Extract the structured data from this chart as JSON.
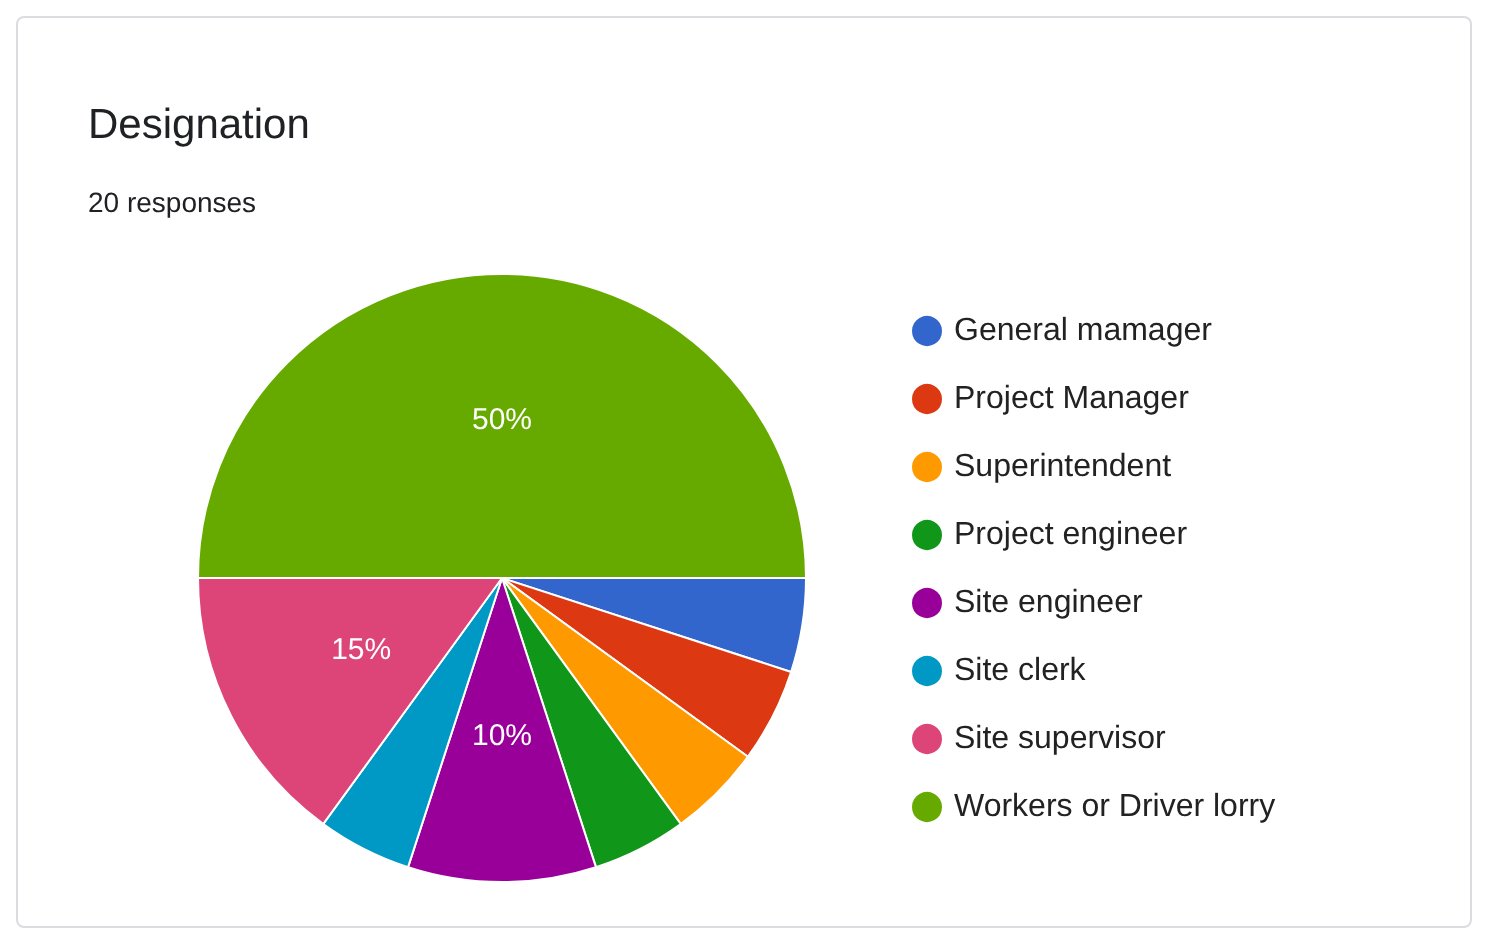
{
  "chart_data": {
    "type": "pie",
    "title": "Designation",
    "subtitle": "20 responses",
    "categories": [
      "General mamager",
      "Project Manager",
      "Superintendent",
      "Project engineer",
      "Site engineer",
      "Site clerk",
      "Site supervisor",
      "Workers or Driver lorry"
    ],
    "values": [
      5,
      5,
      5,
      5,
      10,
      5,
      15,
      50
    ],
    "colors": [
      "#3366cc",
      "#dc3912",
      "#ff9900",
      "#109618",
      "#990099",
      "#0099c6",
      "#dd4477",
      "#66aa00"
    ],
    "value_labels": [
      null,
      null,
      null,
      null,
      "10%",
      null,
      "15%",
      "50%"
    ],
    "legend": "right"
  }
}
